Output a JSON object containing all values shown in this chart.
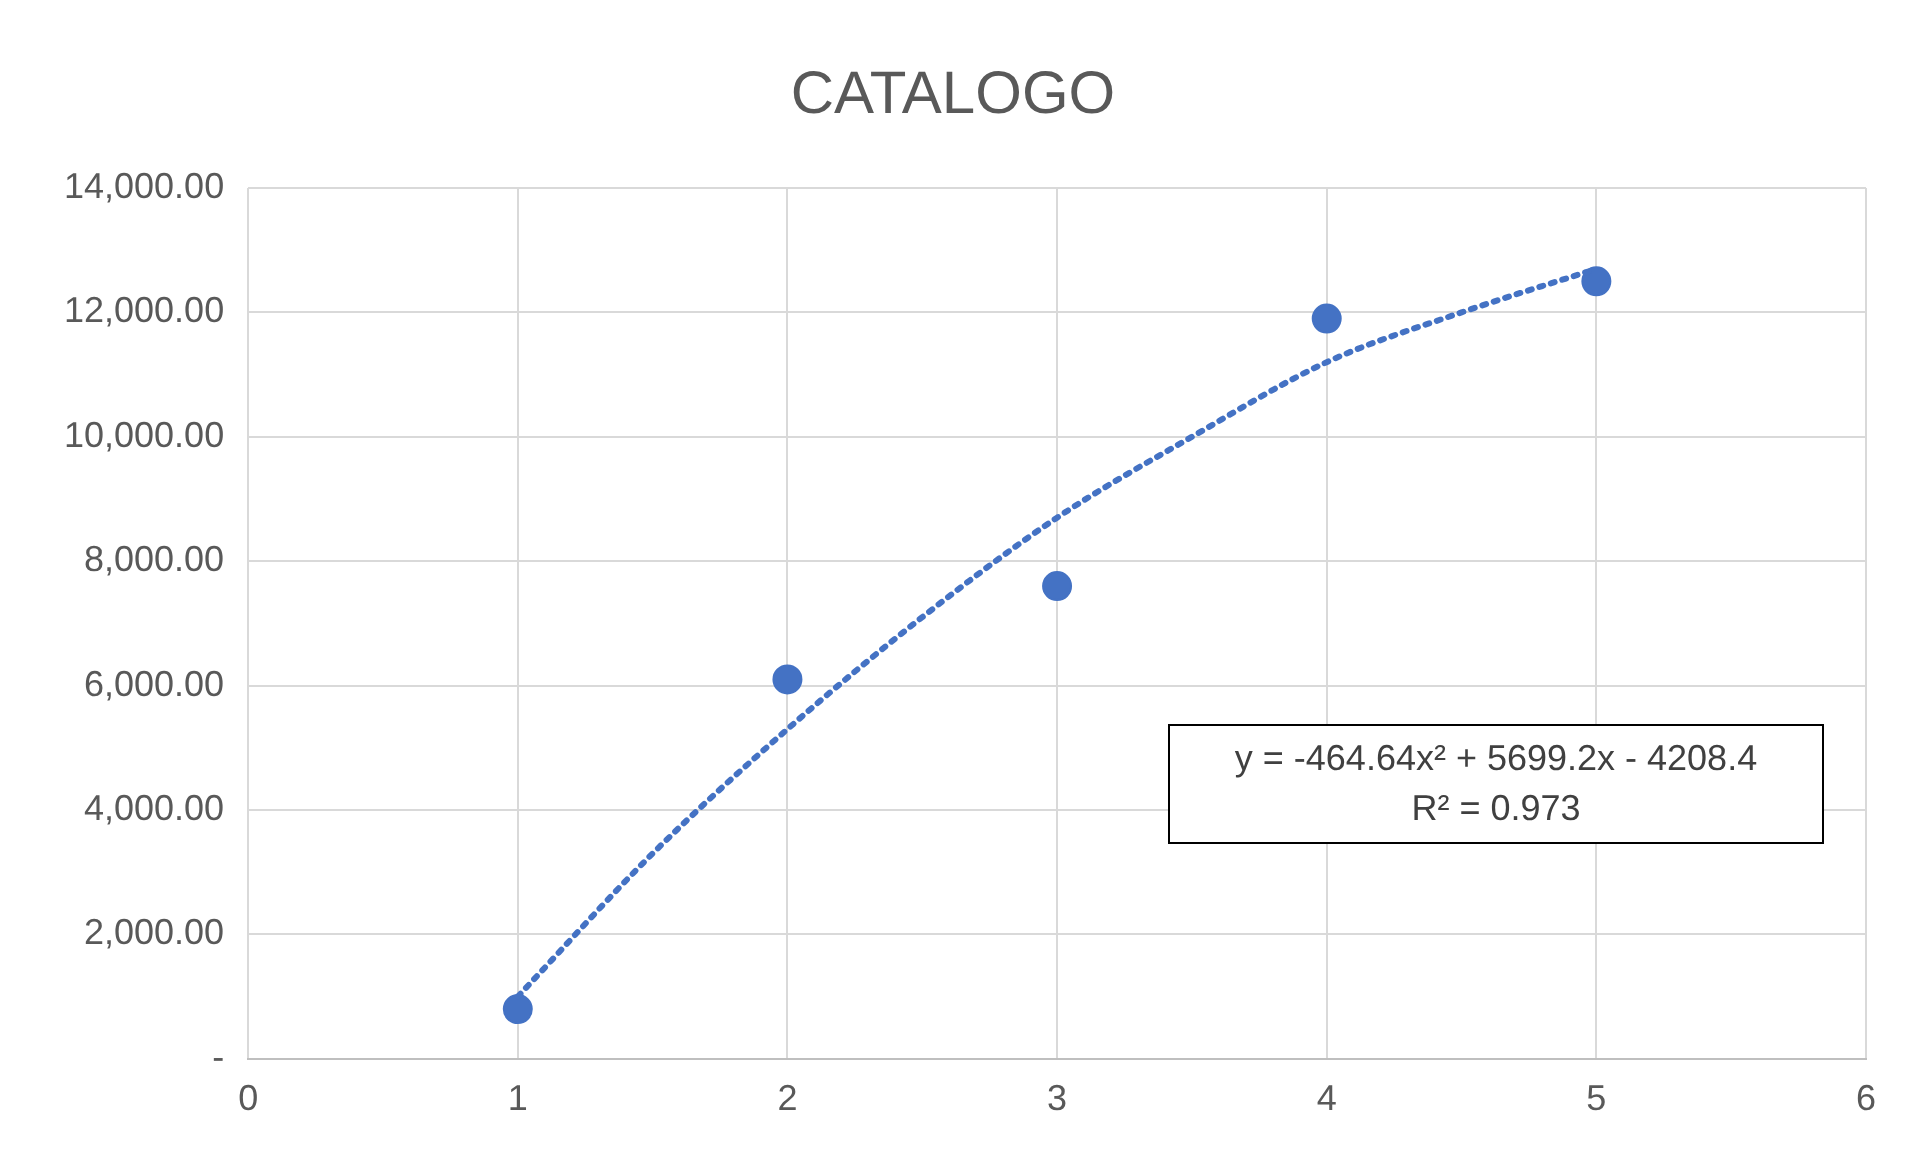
{
  "chart_data": {
    "type": "scatter",
    "title": "CATALOGO",
    "x": [
      1,
      2,
      3,
      4,
      5
    ],
    "series": [
      {
        "type": "scatter",
        "color": "#4472c4",
        "marker": "circle",
        "values": [
          800,
          6100,
          7600,
          11900,
          12500
        ]
      },
      {
        "type": "line",
        "color": "#4472c4",
        "line_style": "dotted",
        "marker": "none",
        "x": [
          1,
          1.5,
          2,
          2.5,
          3,
          3.5,
          4,
          4.5,
          5
        ],
        "values": [
          1000,
          3300,
          5300,
          7100,
          8700,
          10000,
          11200,
          12000,
          12700
        ]
      }
    ],
    "xlim": [
      0,
      6
    ],
    "xticks": [
      0,
      1,
      2,
      3,
      4,
      5,
      6
    ],
    "ylim": [
      0,
      14000
    ],
    "yticks": [
      {
        "value": 0,
        "label": "-"
      },
      {
        "value": 2000,
        "label": "2,000.00"
      },
      {
        "value": 4000,
        "label": "4,000.00"
      },
      {
        "value": 6000,
        "label": "6,000.00"
      },
      {
        "value": 8000,
        "label": "8,000.00"
      },
      {
        "value": 10000,
        "label": "10,000.00"
      },
      {
        "value": 12000,
        "label": "12,000.00"
      },
      {
        "value": 14000,
        "label": "14,000.00"
      }
    ],
    "grid": true,
    "legend": false,
    "annotations": [
      "y = -464.64x² + 5699.2x - 4208.4",
      "R² = 0.973"
    ]
  }
}
